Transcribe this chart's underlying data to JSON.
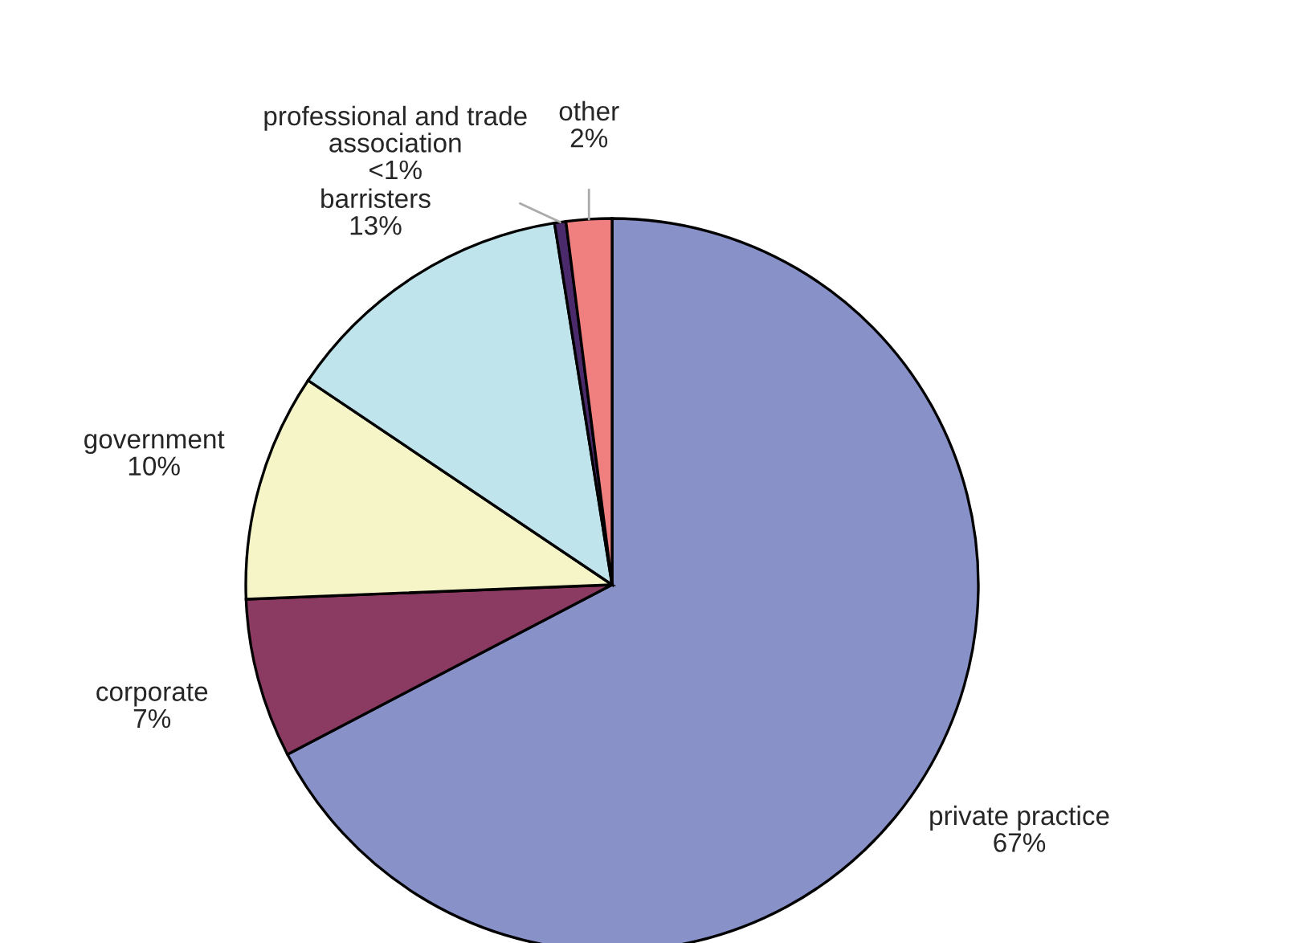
{
  "chart_data": {
    "type": "pie",
    "categories": [
      "private practice",
      "corporate",
      "government",
      "barristers",
      "professional and trade\nassociation",
      "other"
    ],
    "values": [
      67,
      7,
      10,
      13,
      0.5,
      2
    ],
    "value_labels": [
      "67%",
      "7%",
      "10%",
      "13%",
      "<1%",
      "2%"
    ],
    "colors": [
      "#8892c8",
      "#8b3a62",
      "#f5f5c8",
      "#c0e4ec",
      "#4b2a6b",
      "#f08080"
    ]
  }
}
